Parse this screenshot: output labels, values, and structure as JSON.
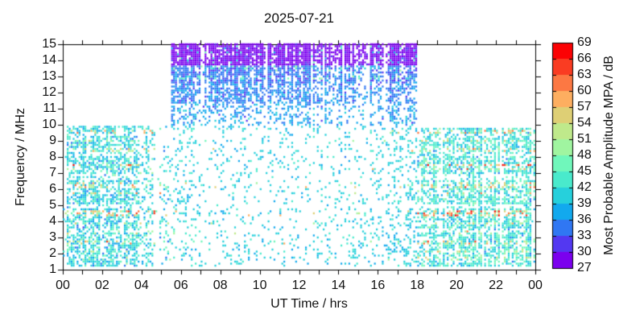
{
  "chart_data": {
    "type": "scatter",
    "title": "2025-07-21",
    "xlabel": "UT Time / hrs",
    "ylabel": "Frequency / MHz",
    "xlim": [
      0,
      24
    ],
    "ylim": [
      1,
      15
    ],
    "grid": false,
    "axis_color": "#000000",
    "xtick_hours": [
      0,
      2,
      4,
      6,
      8,
      10,
      12,
      14,
      16,
      18,
      20,
      22,
      24
    ],
    "xtick_labels": [
      "00",
      "02",
      "04",
      "06",
      "08",
      "10",
      "12",
      "14",
      "16",
      "18",
      "20",
      "22",
      "00"
    ],
    "ytick_values": [
      1,
      2,
      3,
      4,
      5,
      6,
      7,
      8,
      9,
      10,
      11,
      12,
      13,
      14,
      15
    ],
    "colorbar": {
      "label": "Most Probable Amplitude MPA / dB",
      "tick_values": [
        27,
        30,
        33,
        36,
        39,
        42,
        45,
        48,
        51,
        54,
        57,
        60,
        63,
        66,
        69
      ],
      "colors": [
        "#7b00ee",
        "#5338f1",
        "#3077f3",
        "#12a9ee",
        "#26d0dc",
        "#49eacc",
        "#70f7bb",
        "#a0f5a0",
        "#bfe98b",
        "#decf75",
        "#fdae60",
        "#fc7843",
        "#fa3c22",
        "#fb0204"
      ]
    },
    "sampling": {
      "t_step_hr": 0.1,
      "f_step_mhz": 0.125,
      "seed": 7,
      "dot_w": 2.2,
      "dot_h": 2.4
    },
    "column_noise": {
      "gap_prob": 0.07,
      "gap_factor": 0.12,
      "min": 0.5,
      "range": 0.85
    },
    "regions": [
      {
        "name": "morning-low",
        "t0": 0,
        "t1": 5.5,
        "f0": 1.25,
        "f1": 10.0,
        "amp": 41.2,
        "sigma": 3.0,
        "stripe_scale": 1.0,
        "gaps": true,
        "density": [
          [
            0,
            0.62
          ],
          [
            3.3,
            0.56
          ],
          [
            4.3,
            0.3
          ],
          [
            5.5,
            0.12
          ]
        ]
      },
      {
        "name": "day-low-sparse",
        "t0": 5.5,
        "t1": 18,
        "f0": 1.25,
        "f1": 10.0,
        "amp": 40.4,
        "sigma": 1.6,
        "stripe_scale": 0.3,
        "gaps": true,
        "density": [
          [
            5.5,
            0.17
          ],
          [
            7.5,
            0.12
          ],
          [
            10,
            0.1
          ],
          [
            14,
            0.12
          ],
          [
            16,
            0.18
          ],
          [
            18,
            0.26
          ]
        ]
      },
      {
        "name": "day-high-top",
        "t0": 5.5,
        "t1": 18,
        "f0": 13.75,
        "f1": 15.01,
        "amp": 28.4,
        "sigma": 1.2,
        "stripe_scale": 1.0,
        "col_pow": 1.4,
        "col_gain": 1.3,
        "density": [
          [
            5.5,
            0.5
          ],
          [
            6.5,
            0.72
          ],
          [
            18,
            0.7
          ]
        ]
      },
      {
        "name": "day-high-upper",
        "t0": 5.5,
        "t1": 18,
        "f0": 12.55,
        "f1": 13.75,
        "amp": 34.3,
        "sigma": 1.7,
        "stripe_scale": 1.0,
        "col_pow": 1.5,
        "col_gain": 1.3,
        "density": [
          [
            5.5,
            0.5
          ],
          [
            6.5,
            0.58
          ],
          [
            18,
            0.5
          ]
        ]
      },
      {
        "name": "day-high-mid",
        "t0": 5.5,
        "t1": 18,
        "f0": 11.35,
        "f1": 12.55,
        "amp": 35.3,
        "sigma": 1.8,
        "stripe_scale": 1.0,
        "col_pow": 1.5,
        "col_gain": 1.25,
        "density": [
          [
            5.5,
            0.45
          ],
          [
            18,
            0.4
          ]
        ]
      },
      {
        "name": "day-high-low",
        "t0": 5.5,
        "t1": 18,
        "f0": 10.0,
        "f1": 11.35,
        "amp": 36.8,
        "sigma": 2.1,
        "stripe_scale": 1.0,
        "col_pow": 1.4,
        "col_gain": 1.1,
        "density": [
          [
            5.5,
            0.3
          ],
          [
            12,
            0.26
          ],
          [
            18,
            0.3
          ]
        ]
      },
      {
        "name": "evening-low",
        "t0": 18,
        "t1": 24.01,
        "f0": 1.25,
        "f1": 9.85,
        "amp": 42.6,
        "sigma": 3.1,
        "stripe_scale": 1.15,
        "gaps": true,
        "density": [
          [
            18,
            0.5
          ],
          [
            19,
            0.62
          ],
          [
            24,
            0.66
          ]
        ]
      }
    ],
    "stripes": [
      {
        "f": 9.6,
        "w": 0.14,
        "boost": 13,
        "p": 0.4
      },
      {
        "f": 9.0,
        "w": 0.1,
        "boost": 9,
        "p": 0.3
      },
      {
        "f": 8.45,
        "w": 0.12,
        "boost": 11,
        "p": 0.3
      },
      {
        "f": 7.5,
        "w": 0.1,
        "boost": 15,
        "p": 0.45
      },
      {
        "f": 7.25,
        "w": 0.1,
        "boost": 12,
        "p": 0.35
      },
      {
        "f": 6.25,
        "w": 0.15,
        "boost": 12,
        "p": 0.4
      },
      {
        "f": 5.75,
        "w": 0.1,
        "boost": 11,
        "p": 0.3
      },
      {
        "f": 4.45,
        "w": 0.18,
        "boost": 15,
        "p": 0.5
      },
      {
        "f": 3.85,
        "w": 0.1,
        "boost": 10,
        "p": 0.3
      },
      {
        "f": 3.3,
        "w": 0.1,
        "boost": 8,
        "p": 0.28
      },
      {
        "f": 2.65,
        "w": 0.12,
        "boost": 12,
        "p": 0.38
      },
      {
        "f": 2.1,
        "w": 0.1,
        "boost": 9,
        "p": 0.3
      },
      {
        "f": 1.7,
        "w": 0.08,
        "boost": 7,
        "p": 0.25
      },
      {
        "f": 12.9,
        "w": 0.12,
        "boost": 9,
        "p": 0.3
      },
      {
        "f": 13.5,
        "w": 0.15,
        "boost": 10,
        "p": 0.12
      },
      {
        "f": 14.35,
        "w": 0.55,
        "boost": 13,
        "p": 0.05
      }
    ],
    "gaps": [
      {
        "f": 4.95,
        "w": 0.14,
        "mul": 0.35
      },
      {
        "f": 6.75,
        "w": 0.14,
        "mul": 0.45
      },
      {
        "f": 8.15,
        "w": 0.12,
        "mul": 0.5
      },
      {
        "f": 3.45,
        "w": 0.1,
        "mul": 0.55
      },
      {
        "f": 9.3,
        "w": 0.08,
        "mul": 0.6
      }
    ]
  }
}
